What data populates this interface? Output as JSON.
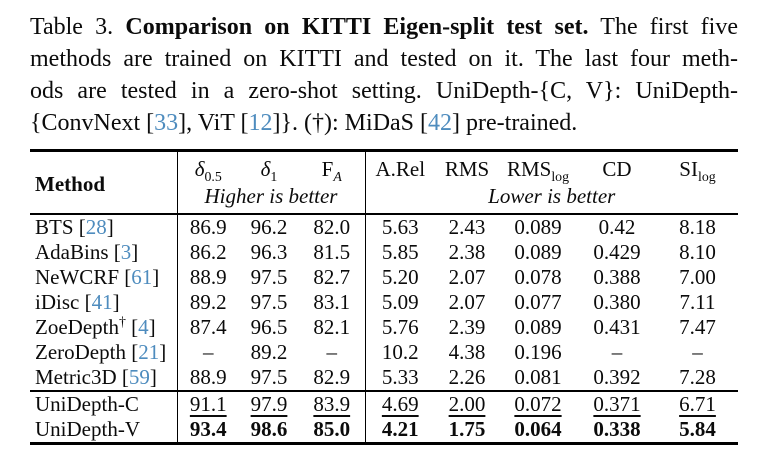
{
  "colors": {
    "citation_link": "#4e8cbe",
    "text": "#0b0b0b",
    "rule": "#000000",
    "background": "#ffffff"
  },
  "caption": {
    "lines": [
      [
        {
          "t": "Table 3. ",
          "s": "n"
        },
        {
          "t": "Comparison on KITTI Eigen-split test set.",
          "s": "b"
        },
        {
          "t": " The first five",
          "s": "n"
        }
      ],
      [
        {
          "t": "methods are trained on KITTI and tested on it. The last four meth-",
          "s": "n"
        }
      ],
      [
        {
          "t": "ods are tested in a zero-shot setting. UniDepth-{C, V}: UniDepth-",
          "s": "n"
        }
      ],
      [
        {
          "t": "{ConvNext [",
          "s": "n"
        },
        {
          "t": "33",
          "s": "c"
        },
        {
          "t": "], ViT [",
          "s": "n"
        },
        {
          "t": "12",
          "s": "c"
        },
        {
          "t": "]}. (†): MiDaS [",
          "s": "n"
        },
        {
          "t": "42",
          "s": "c"
        },
        {
          "t": "] pre-trained.",
          "s": "n"
        }
      ]
    ]
  },
  "table": {
    "method_header": "Method",
    "higher_label": "Higher is better",
    "lower_label": "Lower is better",
    "metric_headers": [
      {
        "main": "δ",
        "sub": "0.5"
      },
      {
        "main": "δ",
        "sub": "1"
      },
      {
        "main": "F",
        "sub": "A"
      },
      {
        "main": "A.Rel",
        "sub": ""
      },
      {
        "main": "RMS",
        "sub": ""
      },
      {
        "main": "RMS",
        "sub": "log"
      },
      {
        "main": "CD",
        "sub": ""
      },
      {
        "main": "SI",
        "sub": "log"
      }
    ],
    "rows": [
      {
        "group": 1,
        "method": "BTS",
        "sup": "",
        "cite": "28",
        "style": "normal",
        "values": [
          "86.9",
          "96.2",
          "82.0",
          "5.63",
          "2.43",
          "0.089",
          "0.42",
          "8.18"
        ]
      },
      {
        "group": 1,
        "method": "AdaBins",
        "sup": "",
        "cite": "3",
        "style": "normal",
        "values": [
          "86.2",
          "96.3",
          "81.5",
          "5.85",
          "2.38",
          "0.089",
          "0.429",
          "8.10"
        ]
      },
      {
        "group": 1,
        "method": "NeWCRF",
        "sup": "",
        "cite": "61",
        "style": "normal",
        "values": [
          "88.9",
          "97.5",
          "82.7",
          "5.20",
          "2.07",
          "0.078",
          "0.388",
          "7.00"
        ]
      },
      {
        "group": 1,
        "method": "iDisc",
        "sup": "",
        "cite": "41",
        "style": "normal",
        "values": [
          "89.2",
          "97.5",
          "83.1",
          "5.09",
          "2.07",
          "0.077",
          "0.380",
          "7.11"
        ]
      },
      {
        "group": 1,
        "method": "ZoeDepth",
        "sup": "†",
        "cite": "4",
        "style": "normal",
        "values": [
          "87.4",
          "96.5",
          "82.1",
          "5.76",
          "2.39",
          "0.089",
          "0.431",
          "7.47"
        ]
      },
      {
        "group": 1,
        "method": "ZeroDepth",
        "sup": "",
        "cite": "21",
        "style": "normal",
        "values": [
          "–",
          "89.2",
          "–",
          "10.2",
          "4.38",
          "0.196",
          "–",
          "–"
        ]
      },
      {
        "group": 1,
        "method": "Metric3D",
        "sup": "",
        "cite": "59",
        "style": "normal",
        "values": [
          "88.9",
          "97.5",
          "82.9",
          "5.33",
          "2.26",
          "0.081",
          "0.392",
          "7.28"
        ]
      },
      {
        "group": 2,
        "method": "UniDepth-C",
        "sup": "",
        "cite": "",
        "style": "underline",
        "values": [
          "91.1",
          "97.9",
          "83.9",
          "4.69",
          "2.00",
          "0.072",
          "0.371",
          "6.71"
        ]
      },
      {
        "group": 2,
        "method": "UniDepth-V",
        "sup": "",
        "cite": "",
        "style": "bold",
        "values": [
          "93.4",
          "98.6",
          "85.0",
          "4.21",
          "1.75",
          "0.064",
          "0.338",
          "5.84"
        ]
      }
    ]
  }
}
